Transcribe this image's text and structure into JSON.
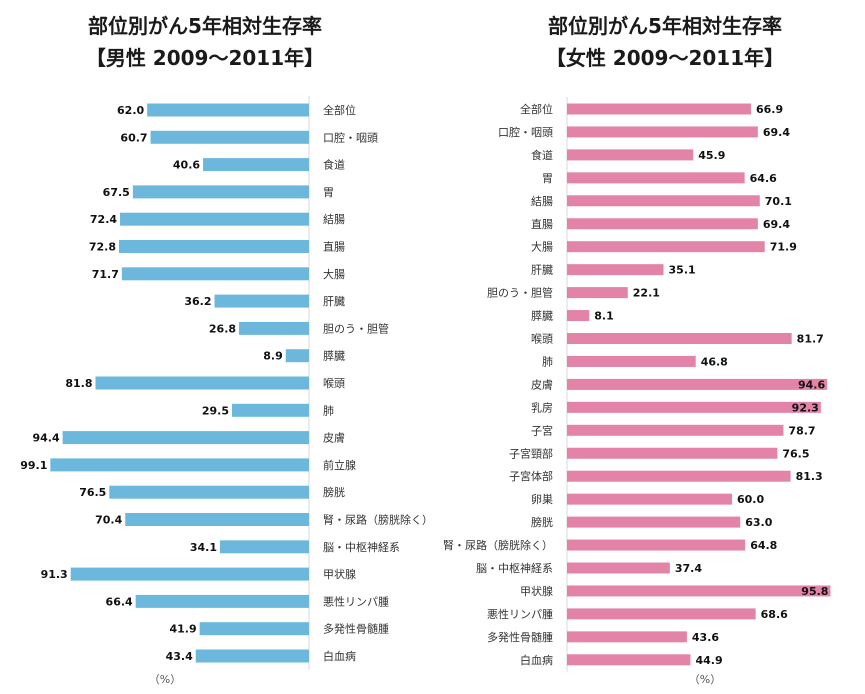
{
  "chart_data": [
    {
      "type": "bar",
      "orientation": "horizontal",
      "title": "部位別がん5年相対生存率",
      "subtitle": "【男性 2009～2011年】",
      "unit_label": "（%）",
      "color": "#6bb8dc",
      "xlim": [
        0,
        100
      ],
      "categories": [
        "全部位",
        "口腔・咽頭",
        "食道",
        "胃",
        "結腸",
        "直腸",
        "大腸",
        "肝臓",
        "胆のう・胆管",
        "膵臓",
        "喉頭",
        "肺",
        "皮膚",
        "前立腺",
        "膀胱",
        "腎・尿路（膀胱除く）",
        "脳・中枢神経系",
        "甲状腺",
        "悪性リンパ腫",
        "多発性骨髄腫",
        "白血病"
      ],
      "values": [
        62.0,
        60.7,
        40.6,
        67.5,
        72.4,
        72.8,
        71.7,
        36.2,
        26.8,
        8.9,
        81.8,
        29.5,
        94.4,
        99.1,
        76.5,
        70.4,
        34.1,
        91.3,
        66.4,
        41.9,
        43.4
      ],
      "labels": [
        "62.0",
        "60.7",
        "40.6",
        "67.5",
        "72.4",
        "72.8",
        "71.7",
        "36.2",
        "26.8",
        "8.9",
        "81.8",
        "29.5",
        "94.4",
        "99.1",
        "76.5",
        "70.4",
        "34.1",
        "91.3",
        "66.4",
        "41.9",
        "43.4"
      ]
    },
    {
      "type": "bar",
      "orientation": "horizontal",
      "title": "部位別がん5年相対生存率",
      "subtitle": "【女性 2009～2011年】",
      "unit_label": "（%）",
      "color": "#e383a8",
      "xlim": [
        0,
        100
      ],
      "categories": [
        "全部位",
        "口腔・咽頭",
        "食道",
        "胃",
        "結腸",
        "直腸",
        "大腸",
        "肝臓",
        "胆のう・胆管",
        "膵臓",
        "喉頭",
        "肺",
        "皮膚",
        "乳房",
        "子宮",
        "子宮頸部",
        "子宮体部",
        "卵巣",
        "膀胱",
        "腎・尿路（膀胱除く）",
        "脳・中枢神経系",
        "甲状腺",
        "悪性リンパ腫",
        "多発性骨髄腫",
        "白血病"
      ],
      "values": [
        66.9,
        69.4,
        45.9,
        64.6,
        70.1,
        69.4,
        71.9,
        35.1,
        22.1,
        8.1,
        81.7,
        46.8,
        94.6,
        92.3,
        78.7,
        76.5,
        81.3,
        60.0,
        63.0,
        64.8,
        37.4,
        95.8,
        68.6,
        43.6,
        44.9
      ],
      "labels": [
        "66.9",
        "69.4",
        "45.9",
        "64.6",
        "70.1",
        "69.4",
        "71.9",
        "35.1",
        "22.1",
        "8.1",
        "81.7",
        "46.8",
        "94.6",
        "92.3",
        "78.7",
        "76.5",
        "81.3",
        "60.0",
        "63.0",
        "64.8",
        "37.4",
        "95.8",
        "68.6",
        "43.6",
        "44.9"
      ]
    }
  ]
}
